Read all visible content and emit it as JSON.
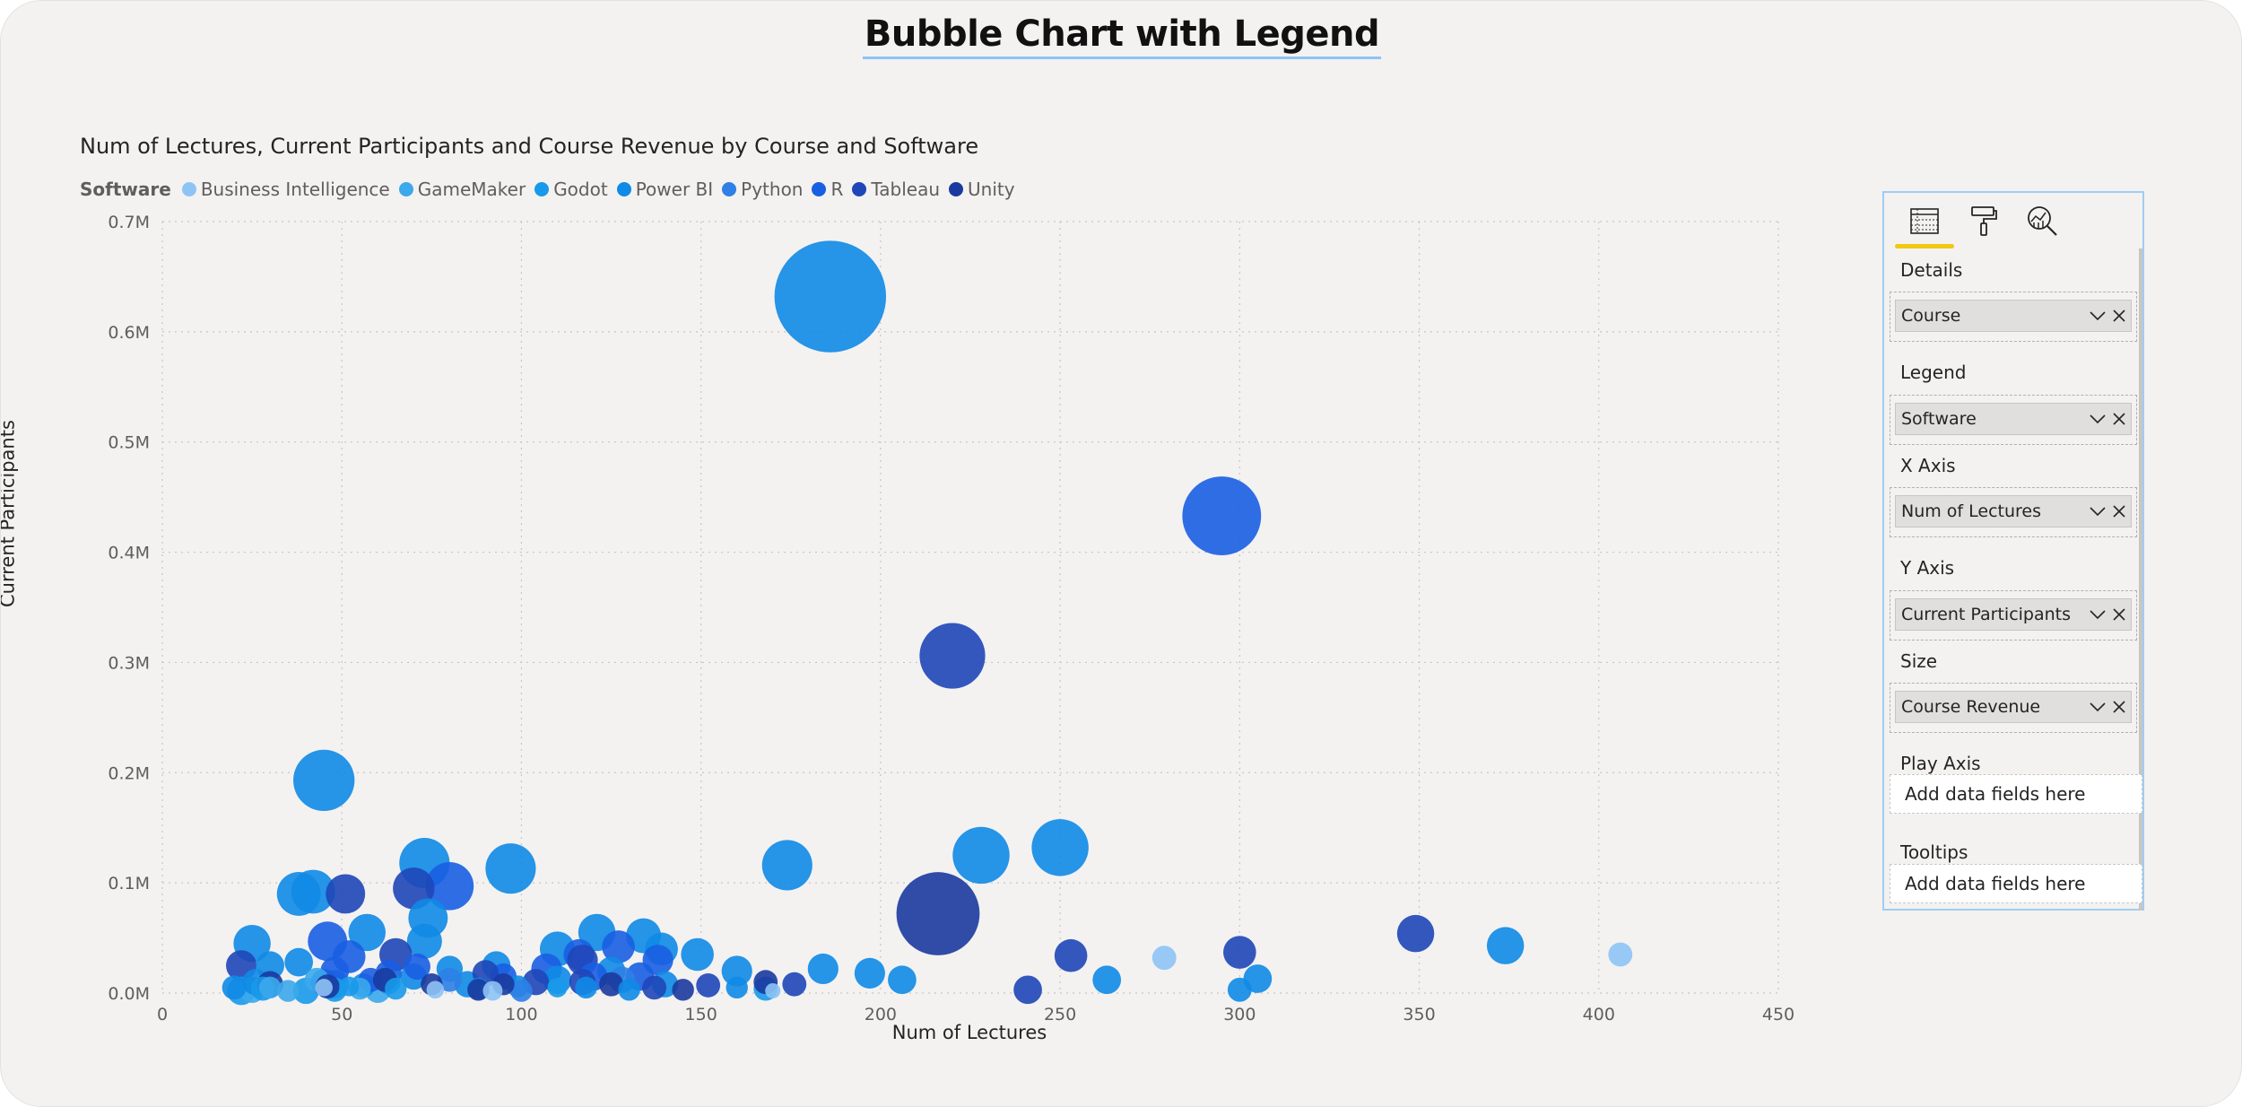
{
  "page": {
    "title": "Bubble Chart with Legend"
  },
  "chart_data": {
    "type": "scatter",
    "title": "Num of Lectures, Current Participants and Course Revenue by Course and Software",
    "xlabel": "Num of Lectures",
    "ylabel": "Current Participants",
    "xlim": [
      0,
      450
    ],
    "ylim": [
      0,
      700000
    ],
    "x_ticks": [
      "0",
      "50",
      "100",
      "150",
      "200",
      "250",
      "300",
      "350",
      "400",
      "450"
    ],
    "y_ticks": [
      "0.0M",
      "0.1M",
      "0.2M",
      "0.3M",
      "0.4M",
      "0.5M",
      "0.6M",
      "0.7M"
    ],
    "grid": true,
    "legend": {
      "title": "Software",
      "placement": "top-left"
    },
    "size_field": "Course Revenue",
    "series": [
      {
        "name": "Business Intelligence",
        "color": "#8ec3f5",
        "points": [
          [
            279,
            32000,
            1.1
          ],
          [
            406,
            35000,
            1.1
          ],
          [
            92,
            2000,
            0.9
          ],
          [
            76,
            3000,
            0.8
          ],
          [
            170,
            2000,
            0.7
          ],
          [
            45,
            5000,
            0.8
          ]
        ]
      },
      {
        "name": "GameMaker",
        "color": "#3ba9ec",
        "points": [
          [
            25,
            3000,
            1.2
          ],
          [
            30,
            5000,
            1.0
          ],
          [
            43,
            12000,
            1.1
          ],
          [
            55,
            4000,
            1.0
          ],
          [
            60,
            3000,
            1.2
          ],
          [
            35,
            2000,
            1.0
          ]
        ]
      },
      {
        "name": "Godot",
        "color": "#1899ea",
        "points": [
          [
            22,
            2000,
            1.3
          ],
          [
            28,
            4000,
            1.1
          ],
          [
            40,
            2000,
            1.2
          ],
          [
            48,
            3000,
            1.1
          ],
          [
            52,
            6000,
            0.9
          ],
          [
            65,
            4000,
            1.0
          ],
          [
            110,
            5000,
            0.9
          ],
          [
            168,
            4000,
            1.1
          ]
        ]
      },
      {
        "name": "Power BI",
        "color": "#0f8ae6",
        "points": [
          [
            186,
            632000,
            5.1
          ],
          [
            45,
            193000,
            2.8
          ],
          [
            97,
            113000,
            2.3
          ],
          [
            174,
            116000,
            2.3
          ],
          [
            228,
            125000,
            2.6
          ],
          [
            250,
            132000,
            2.6
          ],
          [
            73,
            118000,
            2.3
          ],
          [
            38,
            90000,
            2.0
          ],
          [
            42,
            92000,
            2.0
          ],
          [
            74,
            68000,
            1.8
          ],
          [
            57,
            55000,
            1.7
          ],
          [
            25,
            45000,
            1.7
          ],
          [
            73,
            47000,
            1.6
          ],
          [
            110,
            40000,
            1.6
          ],
          [
            121,
            55000,
            1.7
          ],
          [
            134,
            52000,
            1.6
          ],
          [
            139,
            40000,
            1.5
          ],
          [
            149,
            35000,
            1.5
          ],
          [
            160,
            20000,
            1.4
          ],
          [
            184,
            22000,
            1.4
          ],
          [
            197,
            18000,
            1.4
          ],
          [
            206,
            12000,
            1.3
          ],
          [
            263,
            12000,
            1.3
          ],
          [
            305,
            13000,
            1.3
          ],
          [
            374,
            43000,
            1.7
          ],
          [
            30,
            25000,
            1.3
          ],
          [
            48,
            8000,
            1.3
          ],
          [
            70,
            15000,
            1.2
          ],
          [
            85,
            8000,
            1.2
          ],
          [
            110,
            12000,
            1.3
          ],
          [
            125,
            20000,
            1.3
          ],
          [
            140,
            8000,
            1.2
          ],
          [
            26,
            10000,
            1.2
          ],
          [
            38,
            28000,
            1.3
          ],
          [
            93,
            25000,
            1.3
          ],
          [
            300,
            3000,
            1.1
          ],
          [
            56,
            7000,
            1.1
          ],
          [
            63,
            10000,
            1.1
          ],
          [
            88,
            4000,
            1.0
          ],
          [
            99,
            6000,
            1.0
          ],
          [
            160,
            5000,
            1.0
          ],
          [
            20,
            5000,
            1.1
          ],
          [
            80,
            22000,
            1.2
          ],
          [
            118,
            5000,
            1.0
          ],
          [
            130,
            3000,
            1.0
          ]
        ]
      },
      {
        "name": "Python",
        "color": "#2e7fe6",
        "points": [
          [
            128,
            12000,
            1.2
          ],
          [
            80,
            12000,
            1.1
          ],
          [
            100,
            2000,
            1.0
          ]
        ]
      },
      {
        "name": "R",
        "color": "#1a5ee3",
        "points": [
          [
            295,
            433000,
            3.6
          ],
          [
            80,
            97000,
            2.2
          ],
          [
            46,
            47000,
            1.8
          ],
          [
            52,
            33000,
            1.5
          ],
          [
            107,
            22000,
            1.4
          ],
          [
            116,
            35000,
            1.4
          ],
          [
            127,
            42000,
            1.5
          ],
          [
            120,
            15000,
            1.3
          ],
          [
            48,
            20000,
            1.3
          ],
          [
            63,
            18000,
            1.2
          ],
          [
            71,
            24000,
            1.2
          ],
          [
            95,
            15000,
            1.2
          ],
          [
            133,
            15000,
            1.3
          ],
          [
            138,
            30000,
            1.4
          ],
          [
            45,
            10000,
            1.2
          ],
          [
            58,
            12000,
            1.1
          ]
        ]
      },
      {
        "name": "Tableau",
        "color": "#1f46b8",
        "points": [
          [
            220,
            306000,
            3.0
          ],
          [
            349,
            54000,
            1.7
          ],
          [
            253,
            34000,
            1.5
          ],
          [
            300,
            37000,
            1.5
          ],
          [
            241,
            3000,
            1.3
          ],
          [
            51,
            90000,
            1.8
          ],
          [
            70,
            95000,
            1.9
          ],
          [
            65,
            35000,
            1.5
          ],
          [
            117,
            30000,
            1.4
          ],
          [
            22,
            25000,
            1.4
          ],
          [
            90,
            18000,
            1.2
          ],
          [
            104,
            10000,
            1.2
          ],
          [
            117,
            10000,
            1.2
          ],
          [
            137,
            5000,
            1.1
          ],
          [
            152,
            7000,
            1.1
          ],
          [
            176,
            8000,
            1.1
          ]
        ]
      },
      {
        "name": "Unity",
        "color": "#1b3a9e",
        "points": [
          [
            216,
            72000,
            3.8
          ],
          [
            30,
            8000,
            1.2
          ],
          [
            46,
            6000,
            1.1
          ],
          [
            62,
            12000,
            1.1
          ],
          [
            75,
            8000,
            1.0
          ],
          [
            88,
            3000,
            1.0
          ],
          [
            125,
            8000,
            1.1
          ],
          [
            145,
            3000,
            1.0
          ],
          [
            168,
            10000,
            1.1
          ],
          [
            95,
            8000,
            1.0
          ]
        ]
      }
    ]
  },
  "pane": {
    "tabs": [
      {
        "name": "fields-tab",
        "icon": "fields-icon"
      },
      {
        "name": "format-tab",
        "icon": "paint-roller-icon"
      },
      {
        "name": "analytics-tab",
        "icon": "analytics-icon"
      }
    ],
    "wells": [
      {
        "label": "Details",
        "value": "Course"
      },
      {
        "label": "Legend",
        "value": "Software"
      },
      {
        "label": "X Axis",
        "value": "Num of Lectures"
      },
      {
        "label": "Y Axis",
        "value": "Current Participants"
      },
      {
        "label": "Size",
        "value": "Course Revenue"
      },
      {
        "label": "Play Axis",
        "placeholder": "Add data fields here"
      },
      {
        "label": "Tooltips",
        "placeholder": "Add data fields here"
      }
    ]
  }
}
